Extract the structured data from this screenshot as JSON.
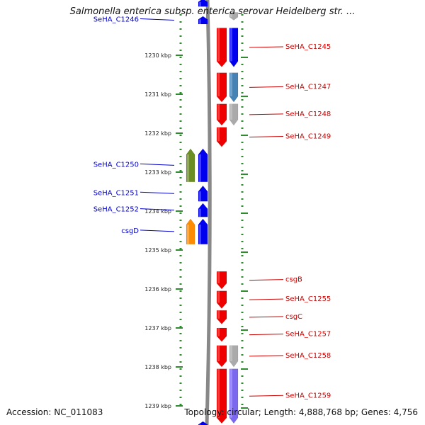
{
  "title": "Salmonella enterica subsp. enterica serovar Heidelberg str. ...",
  "footer": {
    "accession": "Accession: NC_011083",
    "topology": "Topology: circular; Length: 4,888,768 bp; Genes: 4,756"
  },
  "axis": {
    "unit": "kbp",
    "ticks": [
      {
        "label": "1230 kbp",
        "kbp": 1230
      },
      {
        "label": "1231 kbp",
        "kbp": 1231
      },
      {
        "label": "1232 kbp",
        "kbp": 1232
      },
      {
        "label": "1233 kbp",
        "kbp": 1233
      },
      {
        "label": "1234 kbp",
        "kbp": 1234
      },
      {
        "label": "1235 kbp",
        "kbp": 1235
      },
      {
        "label": "1236 kbp",
        "kbp": 1236
      },
      {
        "label": "1237 kbp",
        "kbp": 1237
      },
      {
        "label": "1238 kbp",
        "kbp": 1238
      },
      {
        "label": "1239 kbp",
        "kbp": 1239
      }
    ]
  },
  "colors": {
    "label_left": "#0000cc",
    "label_right": "#cc0000",
    "backbone": "#888888",
    "guide": "#2e8b2e",
    "gene_red": "#ee0000",
    "gene_blue": "#0000ee",
    "gene_green": "#6b8e23",
    "gene_orange": "#ff8c00",
    "gene_gray": "#aaaaaa",
    "gene_steel": "#4682b4",
    "gene_lavender": "#7b68ee"
  },
  "genes": [
    {
      "name": "",
      "strand": "+",
      "start": 1228.55,
      "end": 1228.75,
      "color": "gene_blue"
    },
    {
      "name": "SeHA_C1246",
      "strand": "+",
      "start": 1229.0,
      "end": 1229.2,
      "color": "gene_blue",
      "label_side": "left"
    },
    {
      "name": "",
      "strand": "-",
      "start": 1228.9,
      "end": 1229.1,
      "color": "gene_gray",
      "track": "outer"
    },
    {
      "name": "SeHA_C1245",
      "strand": "-",
      "start": 1229.3,
      "end": 1230.3,
      "color": "gene_red",
      "label_side": "right"
    },
    {
      "name": "",
      "strand": "-",
      "start": 1229.3,
      "end": 1230.3,
      "color": "gene_blue",
      "track": "outer"
    },
    {
      "name": "SeHA_C1247",
      "strand": "-",
      "start": 1230.45,
      "end": 1231.2,
      "color": "gene_red",
      "label_side": "right"
    },
    {
      "name": "",
      "strand": "-",
      "start": 1230.45,
      "end": 1231.2,
      "color": "gene_steel",
      "track": "outer"
    },
    {
      "name": "SeHA_C1248",
      "strand": "-",
      "start": 1231.25,
      "end": 1231.8,
      "color": "gene_red",
      "label_side": "right"
    },
    {
      "name": "",
      "strand": "-",
      "start": 1231.25,
      "end": 1231.8,
      "color": "gene_gray",
      "track": "outer"
    },
    {
      "name": "SeHA_C1249",
      "strand": "-",
      "start": 1231.85,
      "end": 1232.35,
      "color": "gene_red",
      "label_side": "right"
    },
    {
      "name": "SeHA_C1250",
      "strand": "+",
      "start": 1232.4,
      "end": 1233.25,
      "color": "gene_blue",
      "label_side": "left"
    },
    {
      "name": "",
      "strand": "+",
      "start": 1232.4,
      "end": 1233.25,
      "color": "gene_green",
      "track": "outer"
    },
    {
      "name": "SeHA_C1251",
      "strand": "+",
      "start": 1233.35,
      "end": 1233.75,
      "color": "gene_blue",
      "label_side": "left"
    },
    {
      "name": "SeHA_C1252",
      "strand": "+",
      "start": 1233.8,
      "end": 1234.15,
      "color": "gene_blue",
      "label_side": "left"
    },
    {
      "name": "csgD",
      "strand": "+",
      "start": 1234.2,
      "end": 1234.85,
      "color": "gene_blue",
      "label_side": "left"
    },
    {
      "name": "",
      "strand": "+",
      "start": 1234.2,
      "end": 1234.85,
      "color": "gene_orange",
      "track": "outer"
    },
    {
      "name": "csgB",
      "strand": "-",
      "start": 1235.55,
      "end": 1236.0,
      "color": "gene_red",
      "label_side": "right"
    },
    {
      "name": "SeHA_C1255",
      "strand": "-",
      "start": 1236.05,
      "end": 1236.5,
      "color": "gene_red",
      "label_side": "right"
    },
    {
      "name": "csgC",
      "strand": "-",
      "start": 1236.55,
      "end": 1236.9,
      "color": "gene_red",
      "label_side": "right"
    },
    {
      "name": "SeHA_C1257",
      "strand": "-",
      "start": 1237.0,
      "end": 1237.35,
      "color": "gene_red",
      "label_side": "right"
    },
    {
      "name": "SeHA_C1258",
      "strand": "-",
      "start": 1237.45,
      "end": 1238.0,
      "color": "gene_red",
      "label_side": "right"
    },
    {
      "name": "",
      "strand": "-",
      "start": 1237.45,
      "end": 1238.0,
      "color": "gene_gray",
      "track": "outer"
    },
    {
      "name": "SeHA_C1259",
      "strand": "-",
      "start": 1238.05,
      "end": 1239.45,
      "color": "gene_red",
      "label_side": "right"
    },
    {
      "name": "",
      "strand": "-",
      "start": 1238.05,
      "end": 1239.45,
      "color": "gene_lavender",
      "track": "outer"
    },
    {
      "name": "",
      "strand": "+",
      "start": 1239.4,
      "end": 1239.6,
      "color": "gene_blue"
    }
  ]
}
